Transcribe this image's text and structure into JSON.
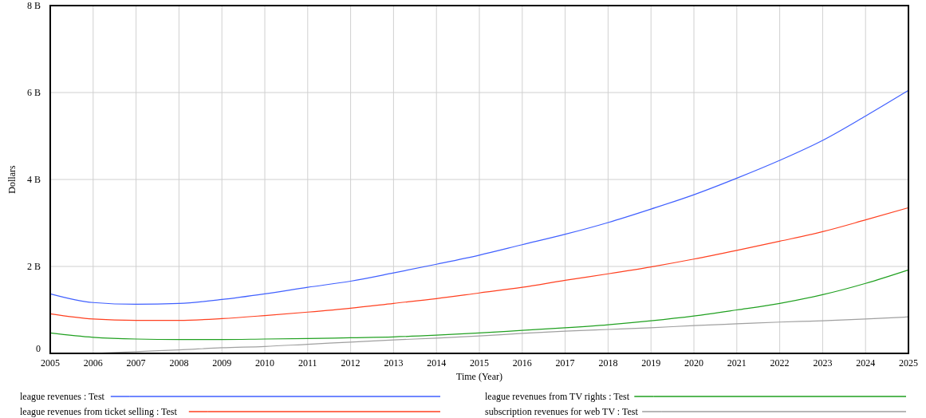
{
  "chart_data": {
    "type": "line",
    "xlabel": "Time (Year)",
    "ylabel": "Dollars",
    "x": [
      2005,
      2006,
      2007,
      2008,
      2009,
      2010,
      2011,
      2012,
      2013,
      2014,
      2015,
      2016,
      2017,
      2018,
      2019,
      2020,
      2021,
      2022,
      2023,
      2024,
      2025
    ],
    "xlim": [
      2005,
      2025
    ],
    "xticks": [
      2005,
      2006,
      2007,
      2008,
      2009,
      2010,
      2011,
      2012,
      2013,
      2014,
      2015,
      2016,
      2017,
      2018,
      2019,
      2020,
      2021,
      2022,
      2023,
      2024,
      2025
    ],
    "ylim": [
      0,
      8
    ],
    "yticks": [
      0,
      {
        "value": 2,
        "label": "2 B"
      },
      {
        "value": 4,
        "label": "4 B"
      },
      {
        "value": 6,
        "label": "6 B"
      },
      {
        "value": 8,
        "label": "8 B"
      }
    ],
    "grid": true,
    "legend": "bottom",
    "marker": "none",
    "line_style": "solid",
    "series": [
      {
        "name": "league revenues : Test",
        "color": "#4060ff",
        "values": [
          1.37,
          1.17,
          1.13,
          1.15,
          1.24,
          1.37,
          1.52,
          1.66,
          1.85,
          2.05,
          2.26,
          2.5,
          2.74,
          3.01,
          3.32,
          3.65,
          4.03,
          4.44,
          4.9,
          5.46,
          6.05
        ]
      },
      {
        "name": "league revenues from ticket selling : Test",
        "color": "#ff4020",
        "values": [
          0.91,
          0.79,
          0.76,
          0.76,
          0.8,
          0.87,
          0.95,
          1.04,
          1.15,
          1.26,
          1.39,
          1.52,
          1.68,
          1.83,
          1.99,
          2.17,
          2.37,
          2.58,
          2.8,
          3.07,
          3.35
        ]
      },
      {
        "name": "league revenues from TV rights : Test",
        "color": "#20a020",
        "values": [
          0.47,
          0.37,
          0.33,
          0.32,
          0.32,
          0.33,
          0.34,
          0.36,
          0.38,
          0.42,
          0.47,
          0.53,
          0.59,
          0.66,
          0.75,
          0.86,
          1.0,
          1.15,
          1.35,
          1.61,
          1.92
        ]
      },
      {
        "name": "subscription revenues for web TV : Test",
        "color": "#a0a0a0",
        "values": [
          null,
          0,
          0.04,
          0.08,
          0.13,
          0.16,
          0.21,
          0.26,
          0.31,
          0.35,
          0.4,
          0.46,
          0.51,
          0.55,
          0.59,
          0.64,
          0.68,
          0.72,
          0.75,
          0.79,
          0.84
        ]
      }
    ]
  }
}
